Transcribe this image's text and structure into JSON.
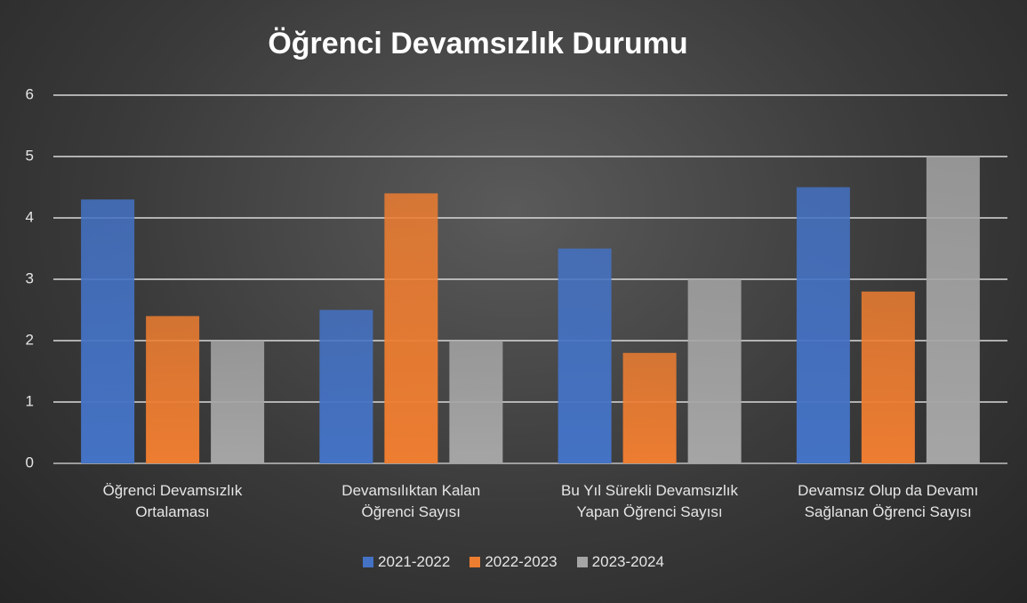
{
  "chart_data": {
    "type": "bar",
    "title": "Öğrenci Devamsızlık Durumu",
    "categories": [
      "Öğrenci Devamsızlık\nOrtalaması",
      "Devamsılıktan Kalan\nÖğrenci Sayısı",
      "Bu Yıl Sürekli Devamsızlık\nYapan Öğrenci Sayısı",
      "Devamsız Olup da Devamı\nSağlanan Öğrenci Sayısı"
    ],
    "series": [
      {
        "name": "2021-2022",
        "color": "#4472c4",
        "values": [
          4.3,
          2.5,
          3.5,
          4.5
        ]
      },
      {
        "name": "2022-2023",
        "color": "#ed7d31",
        "values": [
          2.4,
          4.4,
          1.8,
          2.8
        ]
      },
      {
        "name": "2023-2024",
        "color": "#a5a5a5",
        "values": [
          2.0,
          2.0,
          3.0,
          5.0
        ]
      }
    ],
    "ylim": [
      0,
      6
    ],
    "yticks": [
      0,
      1,
      2,
      3,
      4,
      5,
      6
    ],
    "grid": true,
    "legend": "bottom"
  }
}
